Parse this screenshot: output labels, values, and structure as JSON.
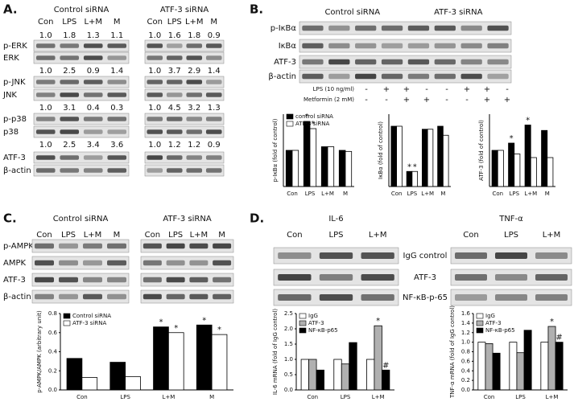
{
  "panel_a": {
    "label": "A.",
    "rows": [
      "p-ERK",
      "ERK",
      "p-JNK",
      "JNK",
      "p-p38",
      "p38",
      "ATF-3",
      "β-actin"
    ],
    "groups": [
      {
        "title": "Control siRNA",
        "lanes": [
          "Con",
          "LPS",
          "L+M",
          "M"
        ],
        "numbers": [
          [
            "1.0",
            "1.8",
            "1.3",
            "1.1"
          ],
          [
            "1.0",
            "2.5",
            "0.9",
            "1.4"
          ],
          [
            "1.0",
            "3.1",
            "0.4",
            "0.3"
          ],
          [
            "1.0",
            "2.5",
            "3.4",
            "3.6"
          ]
        ]
      },
      {
        "title": "ATF-3 siRNA",
        "lanes": [
          "Con",
          "LPS",
          "L+M",
          "M"
        ],
        "numbers": [
          [
            "1.0",
            "1.6",
            "1.8",
            "0.9"
          ],
          [
            "1.0",
            "3.7",
            "2.9",
            "1.4"
          ],
          [
            "1.0",
            "4.5",
            "3.2",
            "1.3"
          ],
          [
            "1.0",
            "1.2",
            "1.2",
            "0.9"
          ]
        ]
      }
    ]
  },
  "panel_b": {
    "label": "B.",
    "groups": [
      "Control siRNA",
      "ATF-3 siRNA"
    ],
    "rows": [
      "p-IκBα",
      "IκBα",
      "ATF-3",
      "β-actin"
    ],
    "treatments": [
      {
        "name": "LPS (10 ng/ml)",
        "signs": [
          "-",
          "+",
          "+",
          "-",
          "-",
          "+",
          "+",
          "-"
        ]
      },
      {
        "name": "Metformin (2 mM)",
        "signs": [
          "-",
          "-",
          "+",
          "+",
          "-",
          "-",
          "+",
          "+"
        ]
      }
    ],
    "charts": [
      {
        "type": "bar",
        "ylabel": "p-IκBα (fold of control)",
        "categories": [
          "Con",
          "LPS",
          "L+M",
          "M"
        ],
        "ylim": [
          0,
          2.0
        ],
        "series": [
          {
            "name": "control siRNA",
            "color": "#000000",
            "values": [
              1.0,
              1.8,
              1.1,
              1.0
            ],
            "annotations": [
              null,
              "*",
              null,
              null
            ]
          },
          {
            "name": "ATF-3 siRNA",
            "color": "#ffffff",
            "values": [
              1.0,
              1.6,
              1.1,
              0.97
            ],
            "annotations": [
              null,
              "*",
              null,
              null
            ]
          }
        ]
      },
      {
        "type": "bar",
        "ylabel": "IκBα (fold of control)",
        "categories": [
          "Con",
          "LPS",
          "L+M",
          "M"
        ],
        "ylim": [
          0,
          1.2
        ],
        "series": [
          {
            "color": "#000000",
            "values": [
              1.0,
              0.25,
              0.95,
              1.0
            ],
            "annotations": [
              null,
              "*",
              null,
              null
            ]
          },
          {
            "color": "#ffffff",
            "values": [
              1.0,
              0.25,
              0.95,
              0.85
            ],
            "annotations": [
              null,
              "*",
              null,
              null
            ]
          }
        ]
      },
      {
        "type": "bar",
        "ylabel": "ATF-3 (fold of control)",
        "categories": [
          "Con",
          "LPS",
          "L+M",
          "M"
        ],
        "ylim": [
          0,
          2.0
        ],
        "series": [
          {
            "color": "#000000",
            "values": [
              1.0,
              1.2,
              1.7,
              1.55
            ],
            "annotations": [
              null,
              "*",
              "*",
              null
            ]
          },
          {
            "color": "#ffffff",
            "values": [
              1.0,
              0.9,
              0.8,
              0.8
            ],
            "annotations": [
              null,
              null,
              null,
              null
            ]
          }
        ]
      }
    ]
  },
  "panel_c": {
    "label": "C.",
    "groups": [
      {
        "title": "Control siRNA",
        "lanes": [
          "Con",
          "LPS",
          "L+M",
          "M"
        ]
      },
      {
        "title": "ATF-3 siRNA",
        "lanes": [
          "Con",
          "LPS",
          "L+M",
          "M"
        ]
      }
    ],
    "rows": [
      "p-AMPK",
      "AMPK",
      "ATF-3",
      "β-actin"
    ],
    "chart": {
      "type": "bar",
      "ylabel": "p-AMPK/AMPK (arbitrary unit)",
      "categories": [
        "Con",
        "LPS",
        "L+M",
        "M"
      ],
      "ylim": [
        0,
        0.8
      ],
      "yticks": [
        {
          "value": 0,
          "label": "0.0"
        },
        0.2,
        0.4,
        0.6,
        0.8
      ],
      "series": [
        {
          "name": "Control siRNA",
          "color": "#000000",
          "values": [
            0.33,
            0.29,
            0.66,
            0.68
          ],
          "annotations": [
            null,
            null,
            "*",
            "*"
          ]
        },
        {
          "name": "ATF-3 siRNA",
          "color": "#ffffff",
          "values": [
            0.13,
            0.14,
            0.6,
            0.58
          ],
          "annotations": [
            null,
            null,
            "*",
            "*"
          ]
        }
      ]
    }
  },
  "panel_d": {
    "label": "D.",
    "genes": [
      {
        "title": "IL-6",
        "lanes": [
          "Con",
          "LPS",
          "L+M"
        ]
      },
      {
        "title": "TNF-α",
        "lanes": [
          "Con",
          "LPS",
          "L+M"
        ]
      }
    ],
    "rows": [
      "IgG control",
      "ATF-3",
      "NF-κB-p-65"
    ],
    "charts": [
      {
        "type": "bar",
        "ylabel": "IL-6 mRNA (fold of IgG control)",
        "categories": [
          "Con",
          "LPS",
          "L+M"
        ],
        "ylim": [
          0,
          2.5
        ],
        "yticks": [
          {
            "value": 0,
            "label": "0.0"
          },
          0.5,
          {
            "value": 1,
            "label": "1.0"
          },
          1.5,
          {
            "value": 2,
            "label": "2.0"
          },
          2.5
        ],
        "series": [
          {
            "name": "IgG",
            "color": "#ffffff",
            "values": [
              1.0,
              1.0,
              1.0
            ],
            "annotations": [
              null,
              null,
              null
            ]
          },
          {
            "name": "ATF-3",
            "color": "#b0b0b0",
            "values": [
              1.0,
              0.85,
              2.1
            ],
            "annotations": [
              null,
              null,
              "*"
            ]
          },
          {
            "name": "NF-κB-p65",
            "color": "#000000",
            "values": [
              0.65,
              1.55,
              0.65
            ],
            "annotations": [
              null,
              null,
              "#"
            ]
          }
        ]
      },
      {
        "type": "bar",
        "ylabel": "TNF-α mRNA (fold of IgG control)",
        "categories": [
          "Con",
          "LPS",
          "L+M"
        ],
        "ylim": [
          0,
          1.6
        ],
        "yticks": [
          {
            "value": 0,
            "label": "0.0"
          },
          0.2,
          0.4,
          0.6,
          0.8,
          {
            "value": 1,
            "label": "1.0"
          },
          1.2,
          1.4,
          1.6
        ],
        "series": [
          {
            "name": "IgG",
            "color": "#ffffff",
            "values": [
              1.0,
              1.0,
              1.0
            ],
            "annotations": [
              null,
              null,
              null
            ]
          },
          {
            "name": "ATF-3",
            "color": "#b0b0b0",
            "values": [
              0.97,
              0.78,
              1.33
            ],
            "annotations": [
              null,
              null,
              "*"
            ]
          },
          {
            "name": "NF-κB-p65",
            "color": "#000000",
            "values": [
              0.77,
              1.25,
              1.0
            ],
            "annotations": [
              null,
              null,
              "#"
            ]
          }
        ]
      }
    ]
  }
}
